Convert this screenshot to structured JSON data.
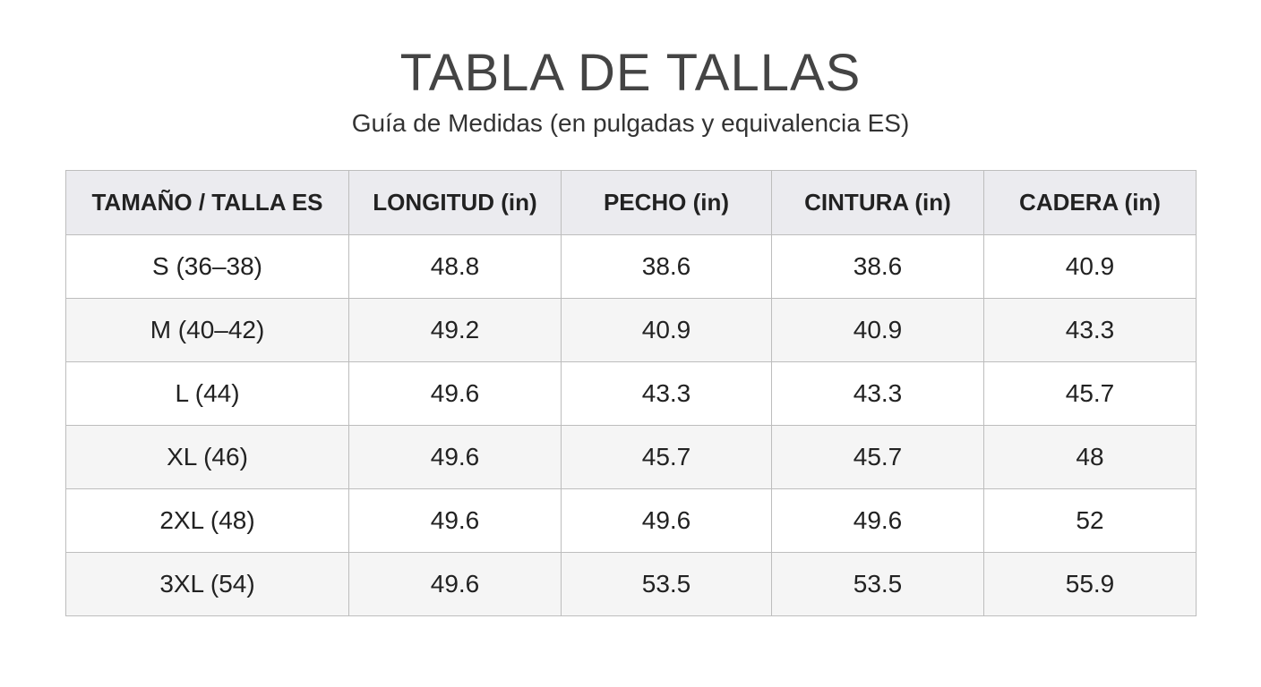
{
  "header": {
    "title": "TABLA DE TALLAS",
    "subtitle": "Guía de Medidas (en pulgadas y equivalencia ES)"
  },
  "table": {
    "columns": [
      "TAMAÑO / TALLA ES",
      "LONGITUD (in)",
      "PECHO (in)",
      "CINTURA (in)",
      "CADERA (in)"
    ],
    "rows": [
      [
        "S (36–38)",
        48.8,
        38.6,
        38.6,
        40.9
      ],
      [
        "M (40–42)",
        49.2,
        40.9,
        40.9,
        43.3
      ],
      [
        "L (44)",
        49.6,
        43.3,
        43.3,
        45.7
      ],
      [
        "XL (46)",
        49.6,
        45.7,
        45.7,
        48
      ],
      [
        "2XL (48)",
        49.6,
        49.6,
        49.6,
        52
      ],
      [
        "3XL (54)",
        49.6,
        53.5,
        53.5,
        55.9
      ]
    ]
  }
}
